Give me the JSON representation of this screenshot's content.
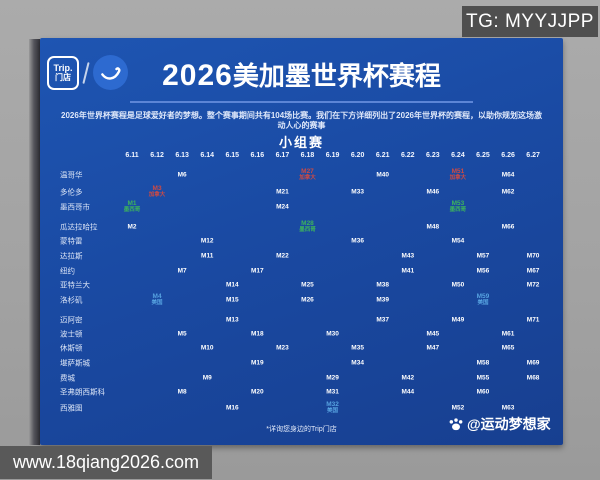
{
  "overlay": {
    "tg_badge": "TG: MYYJJPP",
    "url_bar": "www.18qiang2026.com"
  },
  "poster": {
    "logo": {
      "store_line1": "Trip.",
      "store_line2": "门店"
    },
    "title": {
      "year": "2026",
      "rest": "美加墨世界杯赛程"
    },
    "subtitle": "2026年世界杯赛程是足球爱好者的梦想。整个赛事期间共有104场比赛。我们在下方详细列出了2026年世界杯的赛程，以助你规划这场激动人心的赛事",
    "stage_label": "小组赛",
    "footnote": "*详询您身边的Trip门店",
    "watermark": "@运动梦想家",
    "colors": {
      "card_bg": "#1a4aa3",
      "mexico_green": "#3db45c",
      "canada_red": "#d04a42",
      "usa_blue": "#56a2e0"
    }
  },
  "chart_data": {
    "type": "table",
    "title": "2026美加墨世界杯赛程 小组赛",
    "dates": [
      "6.11",
      "6.12",
      "6.13",
      "6.14",
      "6.15",
      "6.16",
      "6.17",
      "6.18",
      "6.19",
      "6.20",
      "6.21",
      "6.22",
      "6.23",
      "6.24",
      "6.25",
      "6.26",
      "6.27"
    ],
    "cities": [
      "温哥华",
      "多伦多",
      "墨西哥市",
      "瓜达拉哈拉",
      "蒙特雷",
      "达拉斯",
      "纽约",
      "亚特兰大",
      "洛杉矶",
      "迈阿密",
      "波士顿",
      "休斯顿",
      "堪萨斯城",
      "费城",
      "圣弗朗西斯科",
      "西雅图"
    ],
    "matches": [
      {
        "m": "M1",
        "city": "墨西哥市",
        "date": "6.11",
        "team": "墨西哥",
        "highlight": "mx"
      },
      {
        "m": "M2",
        "city": "瓜达拉哈拉",
        "date": "6.11"
      },
      {
        "m": "M3",
        "city": "多伦多",
        "date": "6.12",
        "team": "加拿大",
        "highlight": "ca"
      },
      {
        "m": "M4",
        "city": "洛杉矶",
        "date": "6.12",
        "team": "美国",
        "highlight": "us"
      },
      {
        "m": "M5",
        "city": "波士顿",
        "date": "6.13"
      },
      {
        "m": "M6",
        "city": "温哥华",
        "date": "6.13"
      },
      {
        "m": "M7",
        "city": "纽约",
        "date": "6.13"
      },
      {
        "m": "M8",
        "city": "圣弗朗西斯科",
        "date": "6.13"
      },
      {
        "m": "M9",
        "city": "费城",
        "date": "6.14"
      },
      {
        "m": "M10",
        "city": "休斯顿",
        "date": "6.14"
      },
      {
        "m": "M11",
        "city": "达拉斯",
        "date": "6.14"
      },
      {
        "m": "M12",
        "city": "蒙特雷",
        "date": "6.14"
      },
      {
        "m": "M13",
        "city": "迈阿密",
        "date": "6.15"
      },
      {
        "m": "M14",
        "city": "亚特兰大",
        "date": "6.15"
      },
      {
        "m": "M15",
        "city": "洛杉矶",
        "date": "6.15"
      },
      {
        "m": "M16",
        "city": "西雅图",
        "date": "6.15"
      },
      {
        "m": "M17",
        "city": "纽约",
        "date": "6.16"
      },
      {
        "m": "M18",
        "city": "波士顿",
        "date": "6.16"
      },
      {
        "m": "M19",
        "city": "堪萨斯城",
        "date": "6.16"
      },
      {
        "m": "M20",
        "city": "圣弗朗西斯科",
        "date": "6.16"
      },
      {
        "m": "M21",
        "city": "多伦多",
        "date": "6.17"
      },
      {
        "m": "M22",
        "city": "达拉斯",
        "date": "6.17"
      },
      {
        "m": "M23",
        "city": "休斯顿",
        "date": "6.17"
      },
      {
        "m": "M24",
        "city": "墨西哥市",
        "date": "6.17"
      },
      {
        "m": "M25",
        "city": "亚特兰大",
        "date": "6.18"
      },
      {
        "m": "M26",
        "city": "洛杉矶",
        "date": "6.18"
      },
      {
        "m": "M27",
        "city": "温哥华",
        "date": "6.18",
        "team": "加拿大",
        "highlight": "ca"
      },
      {
        "m": "M28",
        "city": "瓜达拉哈拉",
        "date": "6.18",
        "team": "墨西哥",
        "highlight": "mx"
      },
      {
        "m": "M29",
        "city": "费城",
        "date": "6.19"
      },
      {
        "m": "M30",
        "city": "波士顿",
        "date": "6.19"
      },
      {
        "m": "M31",
        "city": "圣弗朗西斯科",
        "date": "6.19"
      },
      {
        "m": "M32",
        "city": "西雅图",
        "date": "6.19",
        "team": "美国",
        "highlight": "us"
      },
      {
        "m": "M33",
        "city": "多伦多",
        "date": "6.20"
      },
      {
        "m": "M34",
        "city": "堪萨斯城",
        "date": "6.20"
      },
      {
        "m": "M35",
        "city": "休斯顿",
        "date": "6.20"
      },
      {
        "m": "M36",
        "city": "蒙特雷",
        "date": "6.20"
      },
      {
        "m": "M37",
        "city": "迈阿密",
        "date": "6.21"
      },
      {
        "m": "M38",
        "city": "亚特兰大",
        "date": "6.21"
      },
      {
        "m": "M39",
        "city": "洛杉矶",
        "date": "6.21"
      },
      {
        "m": "M40",
        "city": "温哥华",
        "date": "6.21"
      },
      {
        "m": "M41",
        "city": "纽约",
        "date": "6.22"
      },
      {
        "m": "M42",
        "city": "费城",
        "date": "6.22"
      },
      {
        "m": "M43",
        "city": "达拉斯",
        "date": "6.22"
      },
      {
        "m": "M44",
        "city": "圣弗朗西斯科",
        "date": "6.22"
      },
      {
        "m": "M45",
        "city": "波士顿",
        "date": "6.23"
      },
      {
        "m": "M46",
        "city": "多伦多",
        "date": "6.23"
      },
      {
        "m": "M47",
        "city": "休斯顿",
        "date": "6.23"
      },
      {
        "m": "M48",
        "city": "瓜达拉哈拉",
        "date": "6.23"
      },
      {
        "m": "M49",
        "city": "迈阿密",
        "date": "6.24"
      },
      {
        "m": "M50",
        "city": "亚特兰大",
        "date": "6.24"
      },
      {
        "m": "M51",
        "city": "温哥华",
        "date": "6.24",
        "team": "加拿大",
        "highlight": "ca"
      },
      {
        "m": "M52",
        "city": "西雅图",
        "date": "6.24"
      },
      {
        "m": "M53",
        "city": "墨西哥市",
        "date": "6.24",
        "team": "墨西哥",
        "highlight": "mx"
      },
      {
        "m": "M54",
        "city": "蒙特雷",
        "date": "6.24"
      },
      {
        "m": "M55",
        "city": "费城",
        "date": "6.25"
      },
      {
        "m": "M56",
        "city": "纽约",
        "date": "6.25"
      },
      {
        "m": "M57",
        "city": "达拉斯",
        "date": "6.25"
      },
      {
        "m": "M58",
        "city": "堪萨斯城",
        "date": "6.25"
      },
      {
        "m": "M59",
        "city": "洛杉矶",
        "date": "6.25",
        "team": "美国",
        "highlight": "us"
      },
      {
        "m": "M60",
        "city": "圣弗朗西斯科",
        "date": "6.25"
      },
      {
        "m": "M61",
        "city": "波士顿",
        "date": "6.26"
      },
      {
        "m": "M62",
        "city": "多伦多",
        "date": "6.26"
      },
      {
        "m": "M63",
        "city": "西雅图",
        "date": "6.26"
      },
      {
        "m": "M64",
        "city": "温哥华",
        "date": "6.26"
      },
      {
        "m": "M65",
        "city": "休斯顿",
        "date": "6.26"
      },
      {
        "m": "M66",
        "city": "瓜达拉哈拉",
        "date": "6.26"
      },
      {
        "m": "M67",
        "city": "纽约",
        "date": "6.27"
      },
      {
        "m": "M68",
        "city": "费城",
        "date": "6.27"
      },
      {
        "m": "M69",
        "city": "堪萨斯城",
        "date": "6.27"
      },
      {
        "m": "M70",
        "city": "达拉斯",
        "date": "6.27"
      },
      {
        "m": "M71",
        "city": "迈阿密",
        "date": "6.27"
      },
      {
        "m": "M72",
        "city": "亚特兰大",
        "date": "6.27"
      }
    ]
  }
}
